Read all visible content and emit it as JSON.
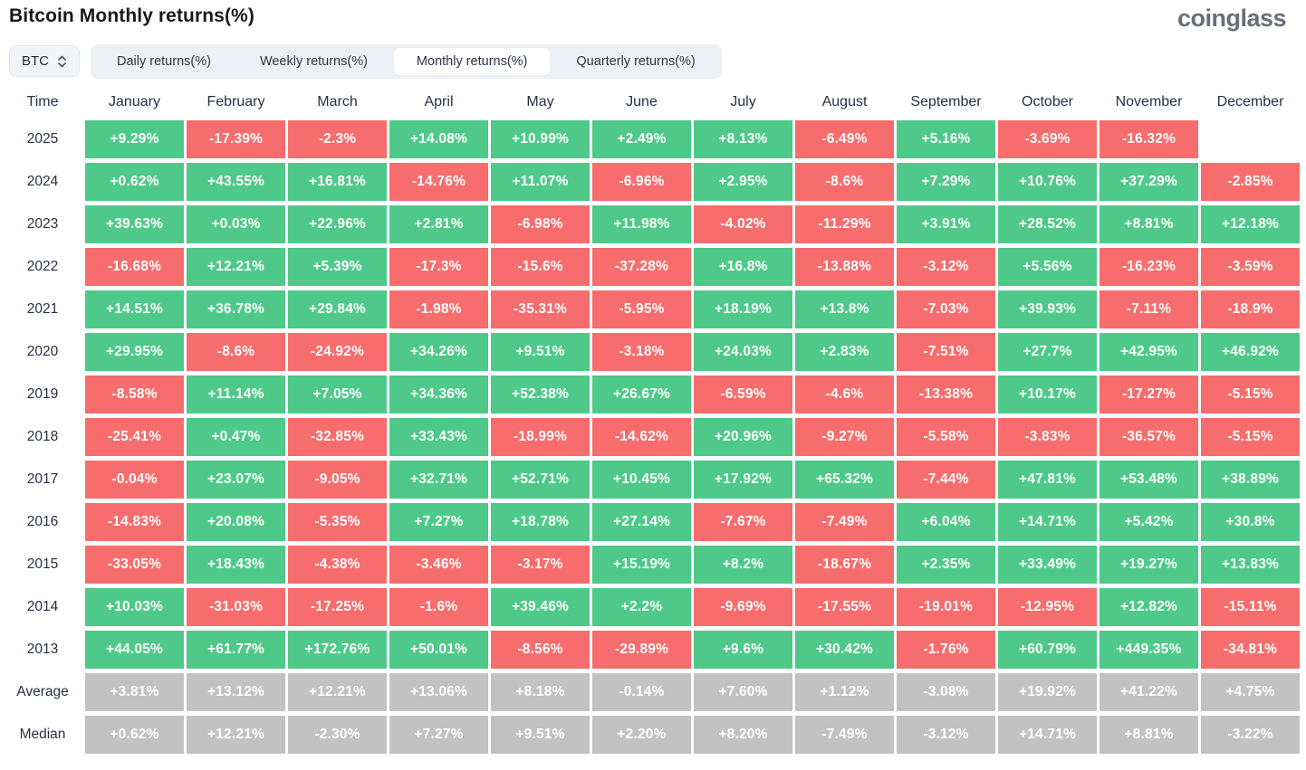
{
  "title": "Bitcoin Monthly returns(%)",
  "logo": "coinglass",
  "colors": {
    "positive": "#4ec98a",
    "negative": "#f76d6d",
    "stat": "#c2c2c2",
    "tabbar_bg": "#edf0f4",
    "text_dark": "#273142"
  },
  "controls": {
    "symbol_select": {
      "value": "BTC",
      "icon": "updown-chevron-icon"
    },
    "tabs": [
      {
        "label": "Daily returns(%)",
        "active": false
      },
      {
        "label": "Weekly returns(%)",
        "active": false
      },
      {
        "label": "Monthly returns(%)",
        "active": true
      },
      {
        "label": "Quarterly returns(%)",
        "active": false
      }
    ]
  },
  "chart_data": {
    "type": "heatmap",
    "title": "Bitcoin Monthly returns(%)",
    "time_header": "Time",
    "months": [
      "January",
      "February",
      "March",
      "April",
      "May",
      "June",
      "July",
      "August",
      "September",
      "October",
      "November",
      "December"
    ],
    "rows": [
      {
        "label": "2025",
        "type": "year",
        "values": [
          "+9.29%",
          "-17.39%",
          "-2.3%",
          "+14.08%",
          "+10.99%",
          "+2.49%",
          "+8.13%",
          "-6.49%",
          "+5.16%",
          "-3.69%",
          "-16.32%",
          null
        ]
      },
      {
        "label": "2024",
        "type": "year",
        "values": [
          "+0.62%",
          "+43.55%",
          "+16.81%",
          "-14.76%",
          "+11.07%",
          "-6.96%",
          "+2.95%",
          "-8.6%",
          "+7.29%",
          "+10.76%",
          "+37.29%",
          "-2.85%"
        ]
      },
      {
        "label": "2023",
        "type": "year",
        "values": [
          "+39.63%",
          "+0.03%",
          "+22.96%",
          "+2.81%",
          "-6.98%",
          "+11.98%",
          "-4.02%",
          "-11.29%",
          "+3.91%",
          "+28.52%",
          "+8.81%",
          "+12.18%"
        ]
      },
      {
        "label": "2022",
        "type": "year",
        "values": [
          "-16.68%",
          "+12.21%",
          "+5.39%",
          "-17.3%",
          "-15.6%",
          "-37.28%",
          "+16.8%",
          "-13.88%",
          "-3.12%",
          "+5.56%",
          "-16.23%",
          "-3.59%"
        ]
      },
      {
        "label": "2021",
        "type": "year",
        "values": [
          "+14.51%",
          "+36.78%",
          "+29.84%",
          "-1.98%",
          "-35.31%",
          "-5.95%",
          "+18.19%",
          "+13.8%",
          "-7.03%",
          "+39.93%",
          "-7.11%",
          "-18.9%"
        ]
      },
      {
        "label": "2020",
        "type": "year",
        "values": [
          "+29.95%",
          "-8.6%",
          "-24.92%",
          "+34.26%",
          "+9.51%",
          "-3.18%",
          "+24.03%",
          "+2.83%",
          "-7.51%",
          "+27.7%",
          "+42.95%",
          "+46.92%"
        ]
      },
      {
        "label": "2019",
        "type": "year",
        "values": [
          "-8.58%",
          "+11.14%",
          "+7.05%",
          "+34.36%",
          "+52.38%",
          "+26.67%",
          "-6.59%",
          "-4.6%",
          "-13.38%",
          "+10.17%",
          "-17.27%",
          "-5.15%"
        ]
      },
      {
        "label": "2018",
        "type": "year",
        "values": [
          "-25.41%",
          "+0.47%",
          "-32.85%",
          "+33.43%",
          "-18.99%",
          "-14.62%",
          "+20.96%",
          "-9.27%",
          "-5.58%",
          "-3.83%",
          "-36.57%",
          "-5.15%"
        ]
      },
      {
        "label": "2017",
        "type": "year",
        "values": [
          "-0.04%",
          "+23.07%",
          "-9.05%",
          "+32.71%",
          "+52.71%",
          "+10.45%",
          "+17.92%",
          "+65.32%",
          "-7.44%",
          "+47.81%",
          "+53.48%",
          "+38.89%"
        ]
      },
      {
        "label": "2016",
        "type": "year",
        "values": [
          "-14.83%",
          "+20.08%",
          "-5.35%",
          "+7.27%",
          "+18.78%",
          "+27.14%",
          "-7.67%",
          "-7.49%",
          "+6.04%",
          "+14.71%",
          "+5.42%",
          "+30.8%"
        ]
      },
      {
        "label": "2015",
        "type": "year",
        "values": [
          "-33.05%",
          "+18.43%",
          "-4.38%",
          "-3.46%",
          "-3.17%",
          "+15.19%",
          "+8.2%",
          "-18.67%",
          "+2.35%",
          "+33.49%",
          "+19.27%",
          "+13.83%"
        ]
      },
      {
        "label": "2014",
        "type": "year",
        "values": [
          "+10.03%",
          "-31.03%",
          "-17.25%",
          "-1.6%",
          "+39.46%",
          "+2.2%",
          "-9.69%",
          "-17.55%",
          "-19.01%",
          "-12.95%",
          "+12.82%",
          "-15.11%"
        ]
      },
      {
        "label": "2013",
        "type": "year",
        "values": [
          "+44.05%",
          "+61.77%",
          "+172.76%",
          "+50.01%",
          "-8.56%",
          "-29.89%",
          "+9.6%",
          "+30.42%",
          "-1.76%",
          "+60.79%",
          "+449.35%",
          "-34.81%"
        ]
      },
      {
        "label": "Average",
        "type": "stat",
        "values": [
          "+3.81%",
          "+13.12%",
          "+12.21%",
          "+13.06%",
          "+8.18%",
          "-0.14%",
          "+7.60%",
          "+1.12%",
          "-3.08%",
          "+19.92%",
          "+41.22%",
          "+4.75%"
        ]
      },
      {
        "label": "Median",
        "type": "stat",
        "values": [
          "+0.62%",
          "+12.21%",
          "-2.30%",
          "+7.27%",
          "+9.51%",
          "+2.20%",
          "+8.20%",
          "-7.49%",
          "-3.12%",
          "+14.71%",
          "+8.81%",
          "-3.22%"
        ]
      }
    ],
    "legend": {
      "positive_color": "#4ec98a",
      "negative_color": "#f76d6d",
      "stat_row_color": "#c2c2c2"
    }
  }
}
